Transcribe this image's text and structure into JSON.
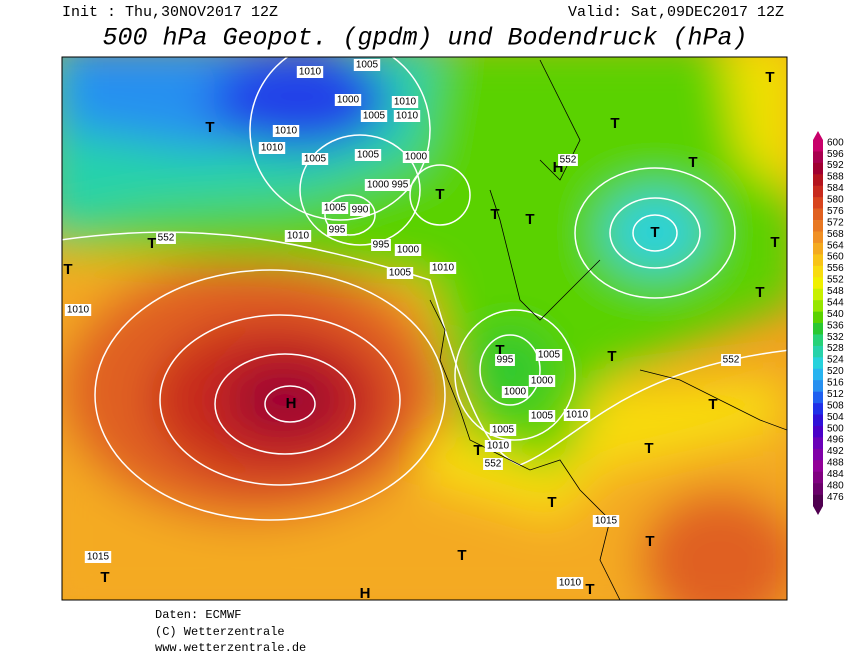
{
  "header": {
    "init": "Init : Thu,30NOV2017 12Z",
    "valid": "Valid: Sat,09DEC2017 12Z",
    "title": "500 hPa Geopot. (gpdm) und Bodendruck (hPa)"
  },
  "colorbar": {
    "values": [
      600,
      596,
      592,
      588,
      584,
      580,
      576,
      572,
      568,
      564,
      560,
      556,
      552,
      548,
      544,
      540,
      536,
      532,
      528,
      524,
      520,
      516,
      512,
      508,
      504,
      500,
      496,
      492,
      488,
      484,
      480,
      476
    ],
    "colors": [
      "#c8006a",
      "#a8004e",
      "#a00030",
      "#b4141e",
      "#c82a1e",
      "#d8441e",
      "#e06020",
      "#e87822",
      "#f09024",
      "#f4aa20",
      "#f8c418",
      "#f8dc10",
      "#f0f000",
      "#c8f000",
      "#96e600",
      "#5ad200",
      "#2ac832",
      "#28d278",
      "#28d2aa",
      "#28d2dc",
      "#28b4f0",
      "#2890f0",
      "#2060f0",
      "#2030e8",
      "#3010d8",
      "#4a00c8",
      "#6a00b8",
      "#8000a8",
      "#920098",
      "#800080",
      "#6a006a",
      "#500050"
    ]
  },
  "map": {
    "labels": [
      "H",
      "T",
      "T",
      "T",
      "T",
      "T",
      "T",
      "T",
      "T",
      "T",
      "T",
      "T",
      "T",
      "T",
      "T",
      "T",
      "T",
      "T",
      "T",
      "T",
      "T",
      "T",
      "T",
      "T",
      "H",
      "H",
      "1010",
      "1015",
      "1015",
      "1010",
      "1010",
      "1005",
      "1005",
      "1010",
      "1000",
      "1005",
      "995",
      "1000",
      "1005",
      "1010",
      "1010",
      "995",
      "995",
      "1000",
      "1005",
      "990",
      "1000",
      "995",
      "1005",
      "1000",
      "1010",
      "1005",
      "1010",
      "1000",
      "1005",
      "1010",
      "1010",
      "1010",
      "1005",
      "552",
      "552",
      "552",
      "552"
    ]
  },
  "footer": {
    "source": "Daten: ECMWF",
    "copyright": "(C) Wetterzentrale",
    "url": "www.wetterzentrale.de"
  }
}
